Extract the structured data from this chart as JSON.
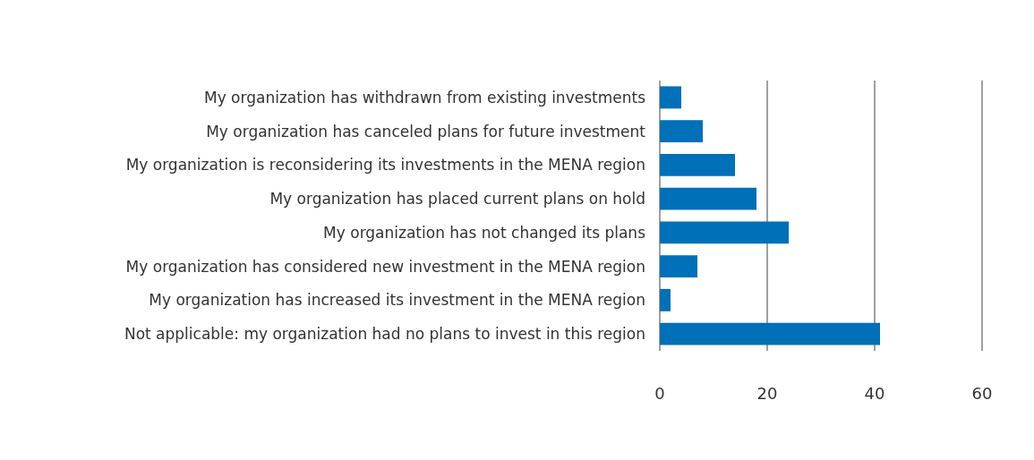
{
  "chart_data": {
    "type": "bar",
    "orientation": "horizontal",
    "categories": [
      "My organization has withdrawn from existing investments",
      "My organization has canceled plans for future investment",
      "My organization is reconsidering its investments in the MENA region",
      "My organization has placed current plans on hold",
      "My organization has not changed its plans",
      "My organization has considered new investment in the MENA region",
      "My organization has increased its investment in the MENA region",
      "Not applicable: my organization had no plans to invest in this region"
    ],
    "values": [
      4,
      8,
      14,
      18,
      24,
      7,
      2,
      41
    ],
    "color": "#0070b8",
    "xlim": [
      0,
      60
    ],
    "xticks": [
      0,
      20,
      40,
      60
    ],
    "grid": "x"
  }
}
